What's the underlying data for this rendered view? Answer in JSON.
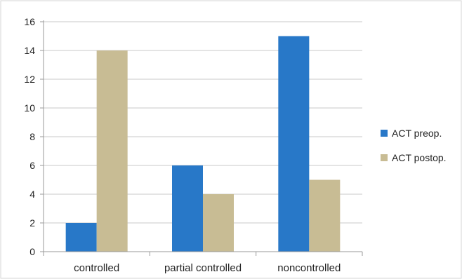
{
  "chart_data": {
    "type": "bar",
    "title": "",
    "xlabel": "",
    "ylabel": "",
    "categories": [
      "controlled",
      "partial controlled",
      "noncontrolled"
    ],
    "series": [
      {
        "name": "ACT preop.",
        "values": [
          2,
          6,
          15
        ],
        "color": "#2878c8"
      },
      {
        "name": "ACT postop.",
        "values": [
          14,
          4,
          5
        ],
        "color": "#c8bc94"
      }
    ],
    "ylim": [
      0,
      16
    ],
    "yticks": [
      0,
      2,
      4,
      6,
      8,
      10,
      12,
      14,
      16
    ],
    "grid": true,
    "legend": "right"
  }
}
